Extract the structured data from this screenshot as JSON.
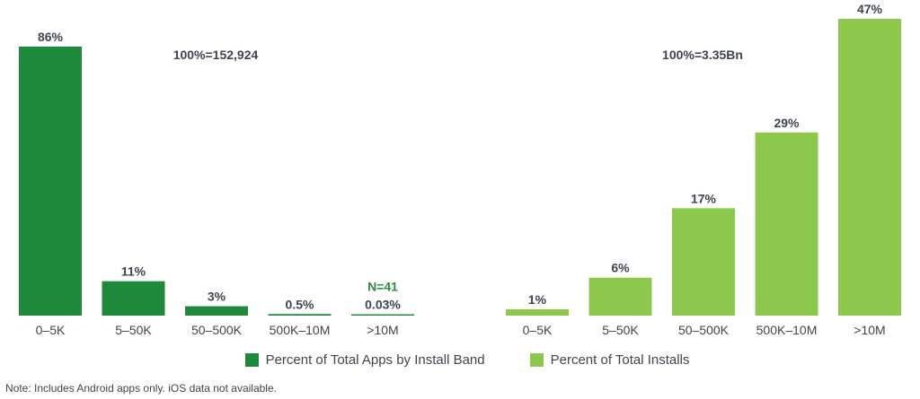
{
  "chart_data": [
    {
      "type": "bar",
      "categories": [
        "0–5K",
        "5–50K",
        "50–500K",
        "500K–10M",
        ">10M"
      ],
      "values": [
        86,
        11,
        3,
        0.5,
        0.03
      ],
      "value_labels": [
        "86%",
        "11%",
        "3%",
        "0.5%",
        "0.03%"
      ],
      "total_label": "100%=152,924",
      "annotation": {
        "category": ">10M",
        "text": "N=41"
      },
      "series_name": "Percent of Total Apps by Install Band",
      "color": "#1f8a3c",
      "ylim": [
        0,
        86
      ]
    },
    {
      "type": "bar",
      "categories": [
        "0–5K",
        "5–50K",
        "50–500K",
        "500K–10M",
        ">10M"
      ],
      "values": [
        1,
        6,
        17,
        29,
        47
      ],
      "value_labels": [
        "1%",
        "6%",
        "17%",
        "29%",
        "47%"
      ],
      "total_label": "100%=3.35Bn",
      "series_name": "Percent of Total Installs",
      "color": "#8cc84b",
      "ylim": [
        0,
        47
      ]
    }
  ],
  "legend": [
    {
      "label": "Percent of Total Apps by Install Band",
      "color": "#1f8a3c"
    },
    {
      "label": "Percent of Total Installs",
      "color": "#8cc84b"
    }
  ],
  "note": "Note: Includes Android apps only. iOS data not available."
}
